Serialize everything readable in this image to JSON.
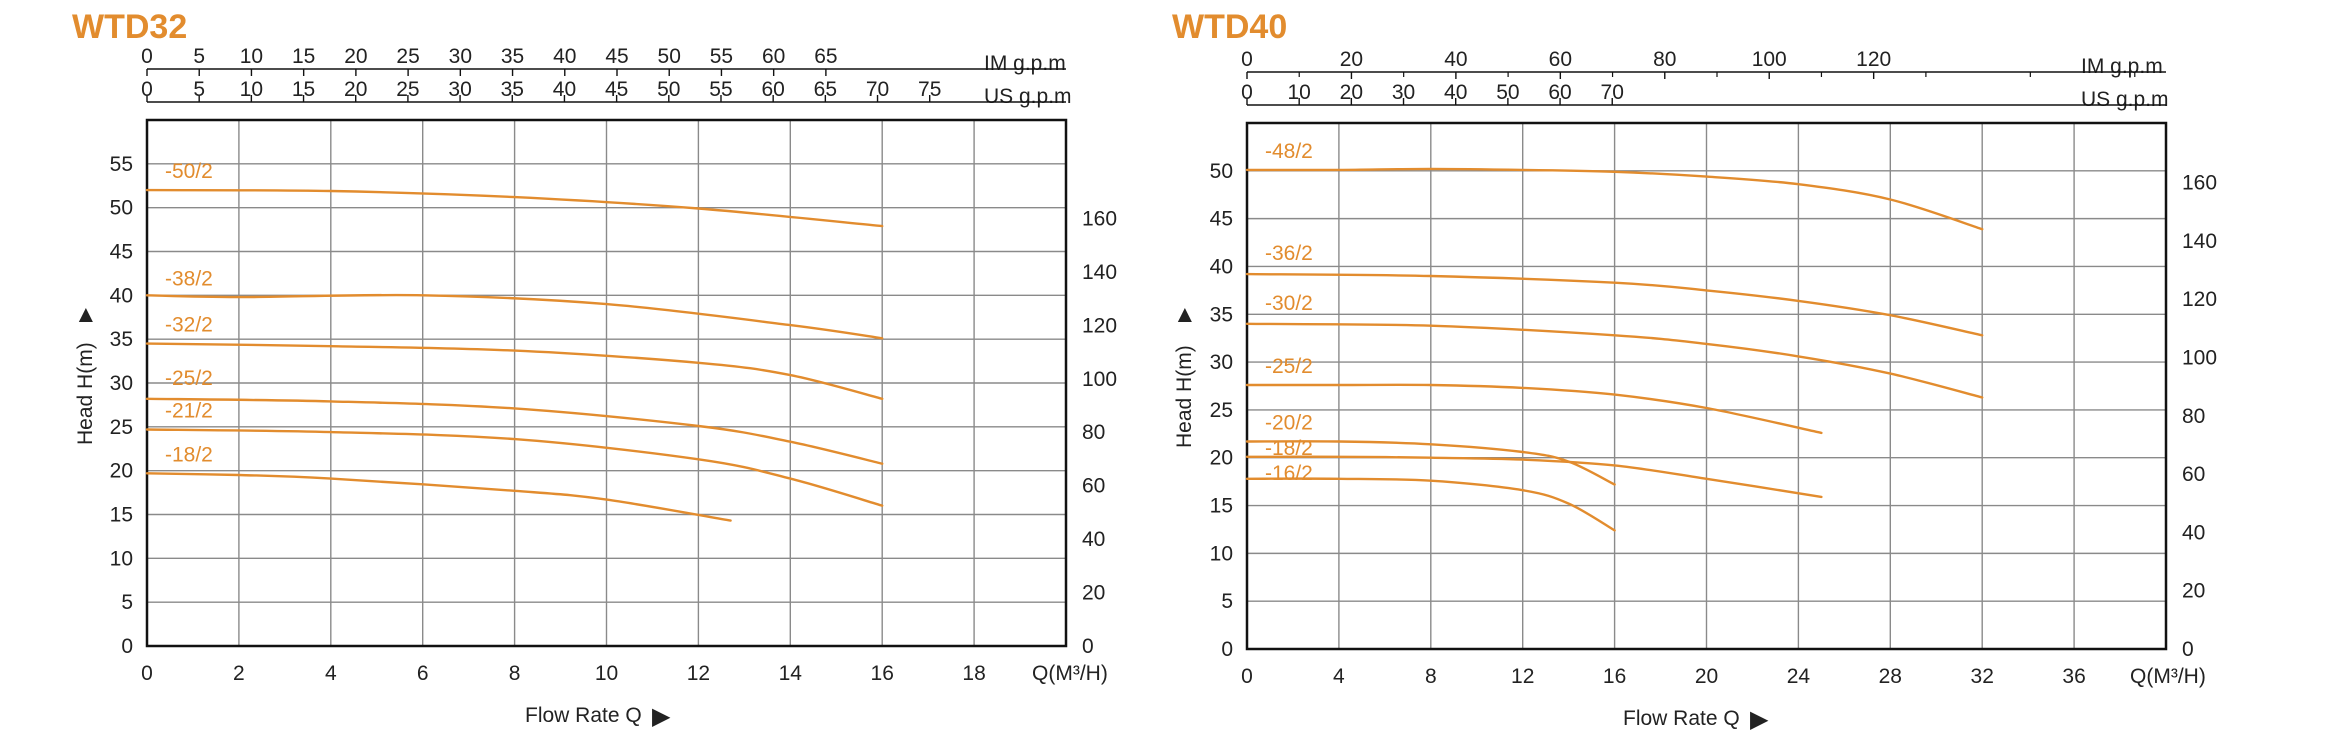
{
  "colors": {
    "curve": "#E28C2E",
    "grid": "#8A8A8A",
    "frame": "#111111",
    "text": "#222222",
    "title": "#E28C2E"
  },
  "chart_data": [
    {
      "type": "line",
      "title": "WTD32",
      "xlabel": "Flow Rate Q",
      "xlabel_arrow": "▶",
      "x_unit": "Q(M³/H)",
      "ylabel": "Head H(m)",
      "ylabel_arrow": "▲",
      "xlim": [
        0,
        20
      ],
      "ylim": [
        0,
        60
      ],
      "x_ticks": [
        0,
        2,
        4,
        6,
        8,
        10,
        12,
        14,
        16,
        18
      ],
      "y_ticks": [
        0,
        5,
        10,
        15,
        20,
        25,
        30,
        35,
        40,
        45,
        50,
        55
      ],
      "im_axis": {
        "label": "IM g.p.m",
        "ticks": [
          "0",
          "5",
          "10",
          "15",
          "20",
          "25",
          "30",
          "35",
          "40",
          "45",
          "50",
          "55",
          "60",
          "65"
        ],
        "per_tick_m3h": 1.1365
      },
      "us_axis": {
        "label": "US g.p.m",
        "ticks": [
          "0",
          "5",
          "10",
          "15",
          "20",
          "25",
          "30",
          "35",
          "40",
          "45",
          "50",
          "55",
          "60",
          "65",
          "70",
          "75"
        ],
        "per_tick_m3h": 1.1356
      },
      "right_axis": {
        "ticks": [
          "0",
          "20",
          "40",
          "60",
          "80",
          "100",
          "120",
          "140",
          "160"
        ],
        "per_tick_m": 6.096
      },
      "grid": true,
      "series": [
        {
          "name": "-50/2",
          "x": [
            0,
            4,
            8,
            12,
            16
          ],
          "y": [
            52,
            51.9,
            51.2,
            49.9,
            47.9
          ]
        },
        {
          "name": "-38/2",
          "x": [
            0,
            2,
            6,
            10,
            14,
            16
          ],
          "y": [
            40,
            39.8,
            40,
            39,
            36.6,
            35.1
          ]
        },
        {
          "name": "-32/2",
          "x": [
            0,
            4,
            8,
            12,
            14,
            16
          ],
          "y": [
            34.5,
            34.2,
            33.7,
            32.3,
            30.9,
            28.2
          ]
        },
        {
          "name": "-25/2",
          "x": [
            0,
            4,
            8,
            12,
            14,
            16
          ],
          "y": [
            28.2,
            27.9,
            27.1,
            25.1,
            23.3,
            20.8
          ]
        },
        {
          "name": "-21/2",
          "x": [
            0,
            4,
            8,
            12,
            14,
            16
          ],
          "y": [
            24.7,
            24.4,
            23.6,
            21.3,
            19.1,
            16
          ]
        },
        {
          "name": "-18/2",
          "x": [
            0,
            2,
            4,
            8,
            10,
            12.7
          ],
          "y": [
            19.7,
            19.5,
            19.1,
            17.7,
            16.7,
            14.3
          ]
        }
      ]
    },
    {
      "type": "line",
      "title": "WTD40",
      "xlabel": "Flow Rate Q",
      "xlabel_arrow": "▶",
      "x_unit": "Q(M³/H)",
      "ylabel": "Head H(m)",
      "ylabel_arrow": "▲",
      "xlim": [
        0,
        40
      ],
      "ylim": [
        0,
        55
      ],
      "x_ticks": [
        0,
        4,
        8,
        12,
        16,
        20,
        24,
        28,
        32,
        36
      ],
      "y_ticks": [
        0,
        5,
        10,
        15,
        20,
        25,
        30,
        35,
        40,
        45,
        50
      ],
      "im_axis": {
        "label": "IM g.p.m",
        "ticks": [
          "0",
          "20",
          "40",
          "60",
          "80",
          "100",
          "120"
        ],
        "per_tick_m3h": 4.546,
        "minor_step_m3h": 2.273
      },
      "us_axis": {
        "label": "US g.p.m",
        "ticks": [
          "0",
          "10",
          "20",
          "30",
          "40",
          "50",
          "60",
          "70"
        ],
        "per_tick_m3h": 2.271
      },
      "right_axis": {
        "ticks": [
          "0",
          "20",
          "40",
          "60",
          "80",
          "100",
          "120",
          "140",
          "160"
        ],
        "per_tick_m": 6.096
      },
      "grid": true,
      "series": [
        {
          "name": "-48/2",
          "x": [
            0,
            4,
            8,
            12,
            16,
            20,
            24,
            28,
            32
          ],
          "y": [
            50.1,
            50.1,
            50.2,
            50.1,
            49.9,
            49.4,
            48.6,
            47,
            43.9
          ]
        },
        {
          "name": "-36/2",
          "x": [
            0,
            8,
            16,
            20,
            24,
            28,
            32
          ],
          "y": [
            39.2,
            39,
            38.3,
            37.5,
            36.4,
            34.9,
            32.8
          ]
        },
        {
          "name": "-30/2",
          "x": [
            0,
            8,
            16,
            20,
            24,
            28,
            32
          ],
          "y": [
            34,
            33.8,
            32.8,
            31.9,
            30.6,
            28.8,
            26.3
          ]
        },
        {
          "name": "-25/2",
          "x": [
            0,
            4,
            8,
            12,
            16,
            20,
            25
          ],
          "y": [
            27.6,
            27.6,
            27.6,
            27.3,
            26.6,
            25.2,
            22.6
          ]
        },
        {
          "name": "-20/2",
          "x": [
            0,
            4,
            8,
            12,
            14,
            16
          ],
          "y": [
            21.7,
            21.7,
            21.4,
            20.6,
            19.6,
            17.2
          ]
        },
        {
          "name": "-18/2",
          "x": [
            0,
            4,
            8,
            12,
            16,
            20,
            25
          ],
          "y": [
            20.1,
            20.1,
            20,
            19.8,
            19.2,
            17.8,
            15.9
          ]
        },
        {
          "name": "-16/2",
          "x": [
            0,
            4,
            8,
            12,
            14,
            16
          ],
          "y": [
            17.8,
            17.8,
            17.6,
            16.6,
            15.2,
            12.4
          ]
        }
      ]
    }
  ]
}
